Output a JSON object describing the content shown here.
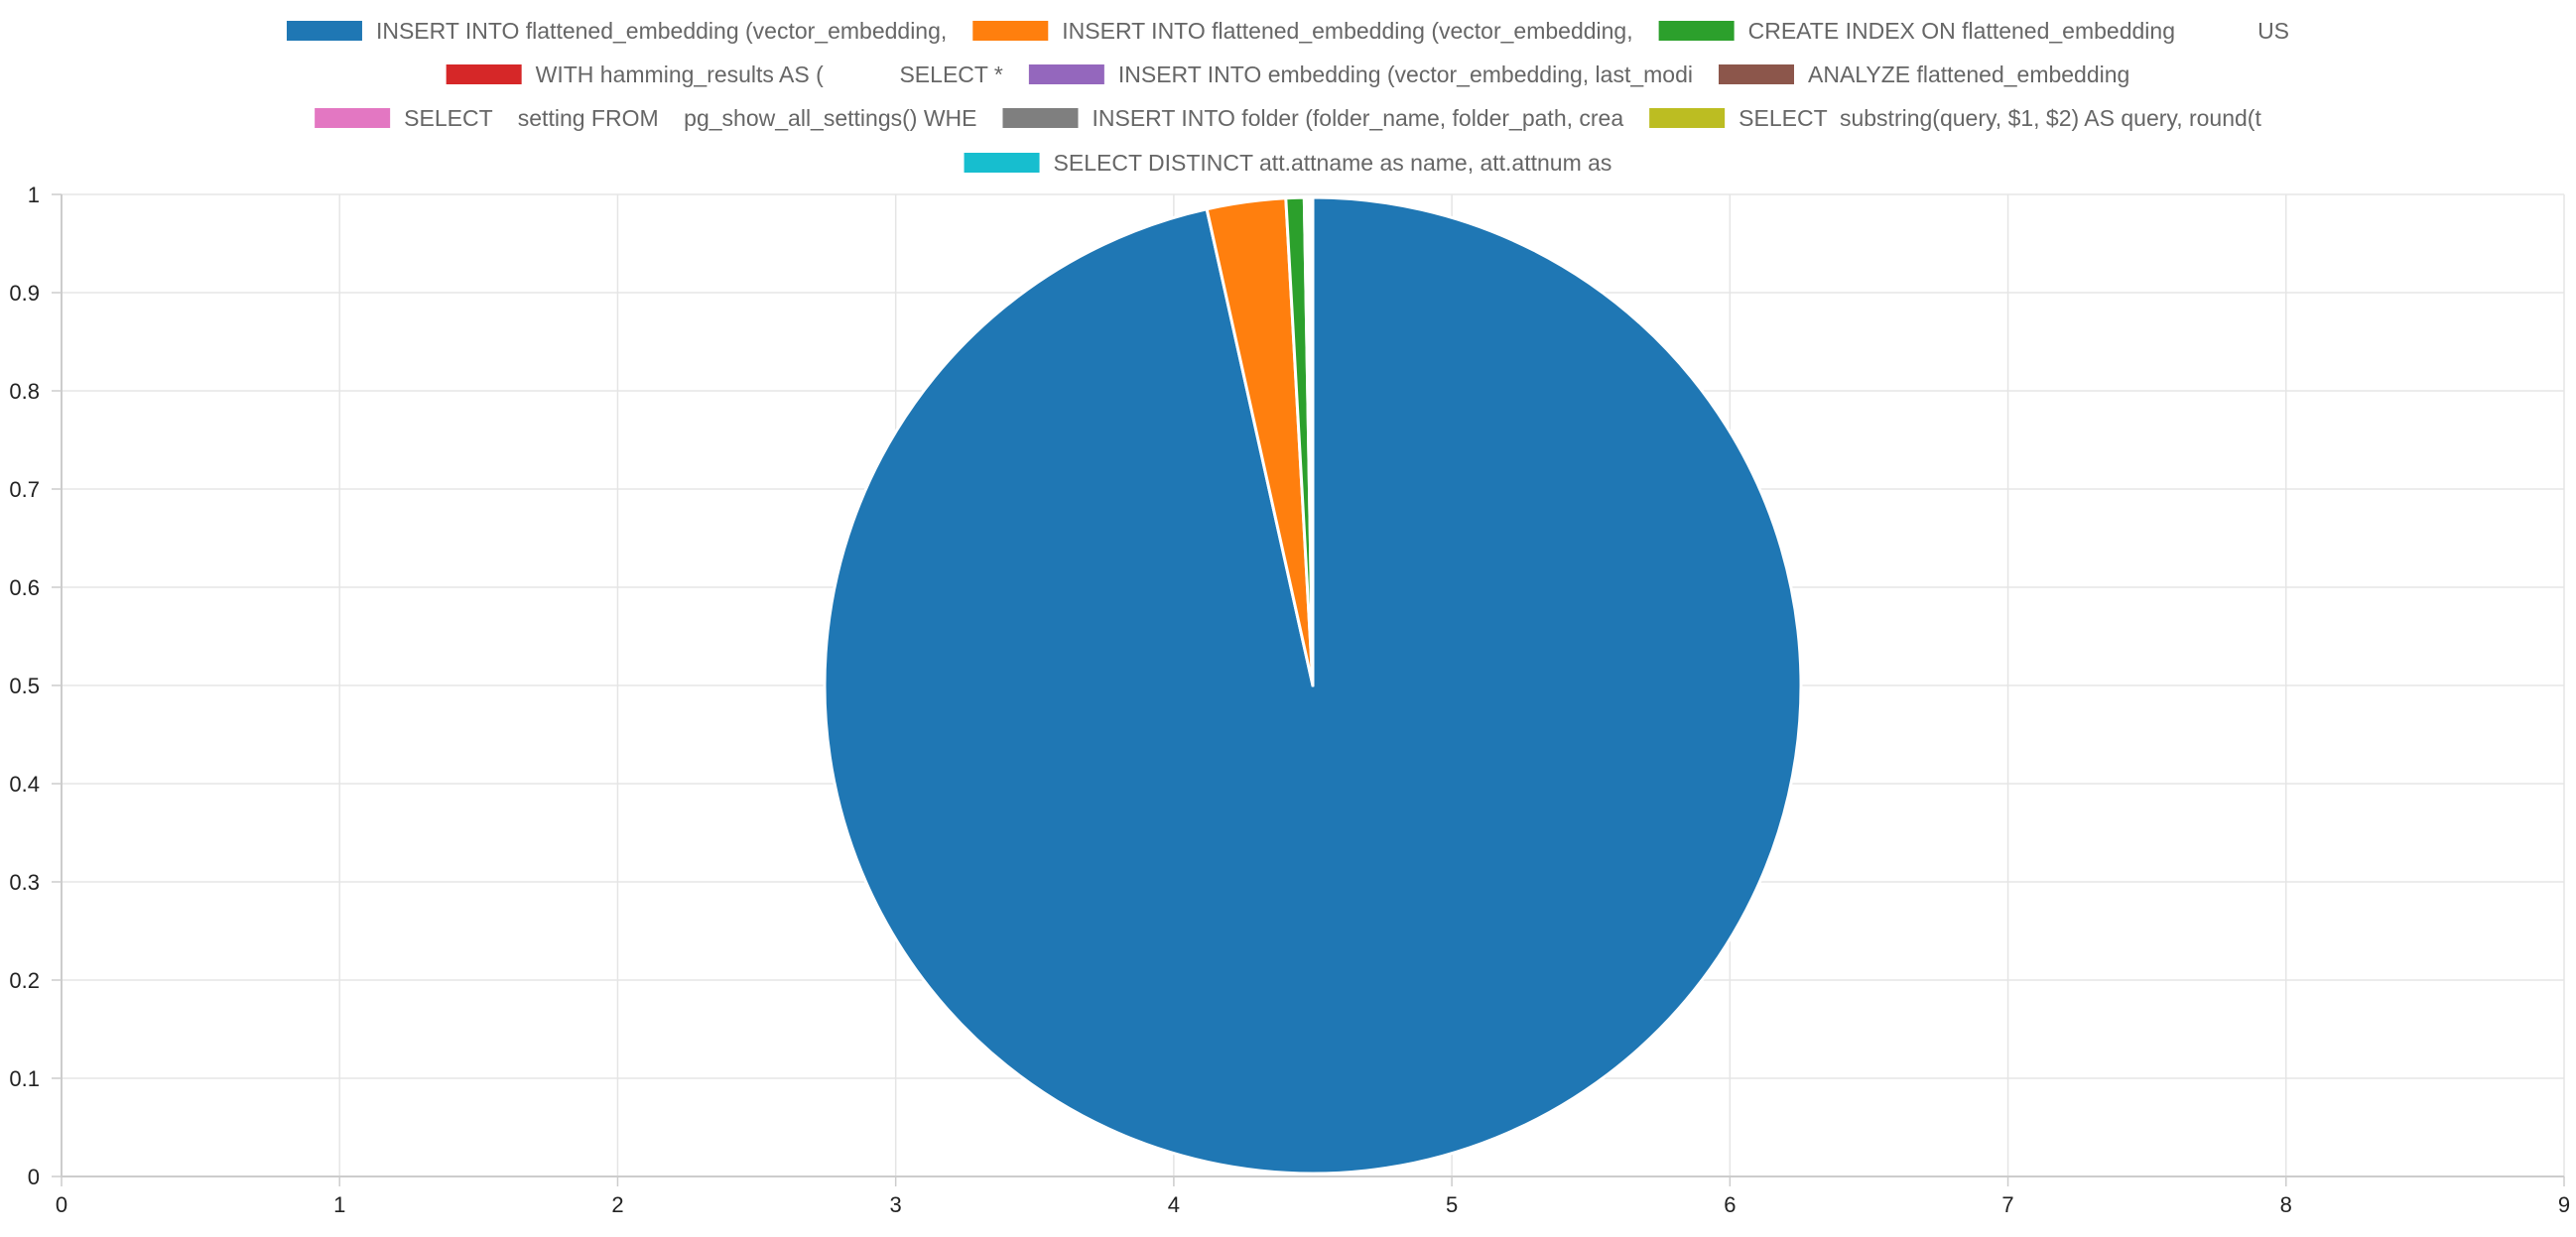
{
  "chart_data": {
    "type": "pie",
    "title": "",
    "xlabel": "",
    "ylabel": "",
    "grid": true,
    "legend_position": "top",
    "x_axis": {
      "min": 0,
      "max": 9,
      "ticks": [
        "0",
        "1",
        "2",
        "3",
        "4",
        "5",
        "6",
        "7",
        "8",
        "9"
      ]
    },
    "y_axis": {
      "min": 0,
      "max": 1,
      "ticks": [
        "0",
        "0.1",
        "0.2",
        "0.3",
        "0.4",
        "0.5",
        "0.6",
        "0.7",
        "0.8",
        "0.9",
        "1"
      ]
    },
    "slices": [
      {
        "label": "INSERT INTO flattened_embedding (vector_embedding,",
        "value": 0.964,
        "color": "#1f77b4"
      },
      {
        "label": "INSERT INTO flattened_embedding (vector_embedding,",
        "value": 0.026,
        "color": "#ff7f0e"
      },
      {
        "label": "CREATE INDEX ON flattened_embedding             US",
        "value": 0.006,
        "color": "#2ca02c"
      },
      {
        "label": "WITH hamming_results AS (            SELECT *",
        "value": 0.0007,
        "color": "#d62728"
      },
      {
        "label": "INSERT INTO embedding (vector_embedding, last_modi",
        "value": 0.0006,
        "color": "#9467bd"
      },
      {
        "label": "ANALYZE flattened_embedding",
        "value": 0.0005,
        "color": "#8c564b"
      },
      {
        "label": "SELECT    setting FROM    pg_show_all_settings() WHE",
        "value": 0.0004,
        "color": "#e377c2"
      },
      {
        "label": "INSERT INTO folder (folder_name, folder_path, crea",
        "value": 0.0003,
        "color": "#7f7f7f"
      },
      {
        "label": "SELECT  substring(query, $1, $2) AS query, round(t",
        "value": 0.0002,
        "color": "#bcbd22"
      },
      {
        "label": "SELECT DISTINCT att.attname as name, att.attnum as",
        "value": 0.0001,
        "color": "#17becf"
      }
    ]
  }
}
